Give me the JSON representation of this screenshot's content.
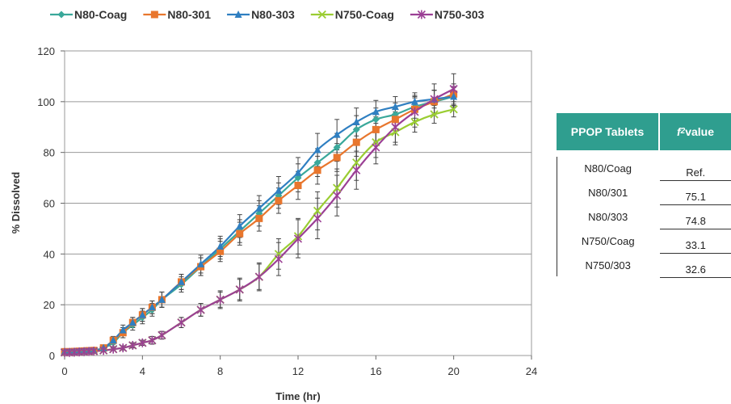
{
  "chart_data": {
    "type": "line",
    "xlabel": "Time (hr)",
    "ylabel": "% Dissolved",
    "xlim": [
      0,
      24
    ],
    "ylim": [
      0,
      120
    ],
    "xticks": [
      0,
      4,
      8,
      12,
      16,
      20,
      24
    ],
    "yticks": [
      0,
      20,
      40,
      60,
      80,
      100,
      120
    ],
    "grid": true,
    "legend": "top",
    "series": [
      {
        "name": "N80-Coag",
        "color": "#3aa89a",
        "marker": "diamond",
        "x": [
          0,
          0.25,
          0.5,
          0.75,
          1,
          1.25,
          1.5,
          2,
          2.5,
          3,
          3.5,
          4,
          4.5,
          5,
          6,
          7,
          8,
          9,
          10,
          11,
          12,
          13,
          14,
          15,
          16,
          17,
          18,
          19,
          20
        ],
        "y": [
          1.5,
          1.5,
          1.6,
          1.7,
          1.8,
          1.9,
          2,
          3,
          5,
          9,
          12,
          15,
          18,
          22,
          28,
          35,
          42,
          49,
          56,
          63,
          70,
          76,
          82,
          89,
          93,
          95,
          98,
          100,
          102
        ],
        "error": [
          0.5,
          0.5,
          0.5,
          0.5,
          0.5,
          0.5,
          0.5,
          1,
          1.5,
          2,
          2,
          2.5,
          2.5,
          3,
          3,
          3.5,
          4,
          4.5,
          5,
          5,
          5.5,
          5.5,
          5.5,
          5.5,
          4.5,
          4.5,
          4.5,
          4.5,
          4
        ]
      },
      {
        "name": "N80-301",
        "color": "#e8762d",
        "marker": "square",
        "x": [
          0,
          0.25,
          0.5,
          0.75,
          1,
          1.25,
          1.5,
          2,
          2.5,
          3,
          3.5,
          4,
          4.5,
          5,
          6,
          7,
          8,
          9,
          10,
          11,
          12,
          13,
          14,
          15,
          16,
          17,
          18,
          19,
          20
        ],
        "y": [
          1.5,
          1.5,
          1.6,
          1.7,
          1.8,
          1.9,
          2,
          3,
          6,
          9,
          13,
          16,
          19,
          22,
          29,
          35,
          41,
          48,
          54,
          61,
          67,
          73,
          78,
          84,
          89,
          93,
          97,
          100,
          103
        ],
        "error": [
          0.5,
          0.5,
          0.5,
          0.5,
          0.5,
          0.5,
          0.5,
          1,
          1.5,
          2,
          2,
          2.5,
          2.5,
          3,
          3,
          3.5,
          4,
          4.5,
          5,
          5,
          5.5,
          5.5,
          5.5,
          5.5,
          5,
          4.5,
          4.5,
          4.5,
          4
        ]
      },
      {
        "name": "N80-303",
        "color": "#2f7fc1",
        "marker": "triangle",
        "x": [
          0,
          0.25,
          0.5,
          0.75,
          1,
          1.25,
          1.5,
          2,
          2.5,
          3,
          3.5,
          4,
          4.5,
          5,
          6,
          7,
          8,
          9,
          10,
          11,
          12,
          13,
          14,
          15,
          16,
          17,
          18,
          19,
          20
        ],
        "y": [
          1.5,
          1.5,
          1.6,
          1.7,
          1.8,
          1.9,
          2,
          3,
          6,
          10,
          13,
          16,
          19,
          22,
          29,
          36,
          43,
          51,
          58,
          65,
          72,
          81,
          87,
          92,
          96,
          98,
          100,
          101,
          102
        ],
        "error": [
          0.5,
          0.5,
          0.5,
          0.5,
          0.5,
          0.5,
          0.5,
          1,
          1.5,
          2,
          2,
          2.5,
          2.5,
          3,
          3,
          3.5,
          4,
          4.5,
          5,
          5.5,
          6,
          6.5,
          6,
          5.5,
          4.5,
          4,
          3.5,
          3.5,
          3.5
        ]
      },
      {
        "name": "N750-Coag",
        "color": "#9acd32",
        "marker": "x",
        "x": [
          0,
          0.25,
          0.5,
          0.75,
          1,
          1.25,
          1.5,
          2,
          2.5,
          3,
          3.5,
          4,
          4.5,
          5,
          6,
          7,
          8,
          9,
          10,
          11,
          12,
          13,
          14,
          15,
          16,
          17,
          18,
          19,
          20
        ],
        "y": [
          1.2,
          1.2,
          1.3,
          1.4,
          1.5,
          1.6,
          1.7,
          2,
          2.5,
          3,
          4,
          5,
          6,
          8,
          13,
          18,
          22,
          26,
          31,
          40,
          47,
          57,
          66,
          76,
          84,
          88,
          92,
          95,
          97
        ],
        "error": [
          0.3,
          0.3,
          0.3,
          0.3,
          0.3,
          0.3,
          0.3,
          0.5,
          0.5,
          0.8,
          1,
          1,
          1.5,
          1.5,
          2,
          2.5,
          3,
          4,
          5,
          6,
          7,
          7.5,
          7.5,
          7,
          6,
          5,
          4,
          3.5,
          3
        ]
      },
      {
        "name": "N750-303",
        "color": "#9b3f95",
        "marker": "star",
        "x": [
          0,
          0.25,
          0.5,
          0.75,
          1,
          1.25,
          1.5,
          2,
          2.5,
          3,
          3.5,
          4,
          4.5,
          5,
          6,
          7,
          8,
          9,
          10,
          11,
          12,
          13,
          14,
          15,
          16,
          17,
          18,
          19,
          20
        ],
        "y": [
          1.2,
          1.2,
          1.3,
          1.4,
          1.5,
          1.6,
          1.7,
          2,
          2.5,
          3,
          4,
          5,
          6,
          8,
          13,
          18,
          22,
          26,
          31,
          38,
          46,
          54,
          63,
          73,
          82,
          90,
          96,
          101,
          105
        ],
        "error": [
          0.3,
          0.3,
          0.3,
          0.3,
          0.3,
          0.3,
          0.3,
          0.5,
          0.5,
          0.8,
          1,
          1,
          1.5,
          1.5,
          2,
          2.5,
          3.5,
          4.5,
          5.5,
          6.5,
          7.5,
          8,
          8,
          7.5,
          6.5,
          6,
          6,
          6,
          6
        ]
      }
    ]
  },
  "table": {
    "header": {
      "col1": "PPOP Tablets",
      "col2_italic": "f",
      "col2_sub": "2",
      "col2_rest": " value"
    },
    "rows": [
      {
        "tablet": "N80/Coag",
        "value": "Ref."
      },
      {
        "tablet": "N80/301",
        "value": "75.1"
      },
      {
        "tablet": "N80/303",
        "value": "74.8"
      },
      {
        "tablet": "N750/Coag",
        "value": "33.1"
      },
      {
        "tablet": "N750/303",
        "value": "32.6"
      }
    ]
  }
}
